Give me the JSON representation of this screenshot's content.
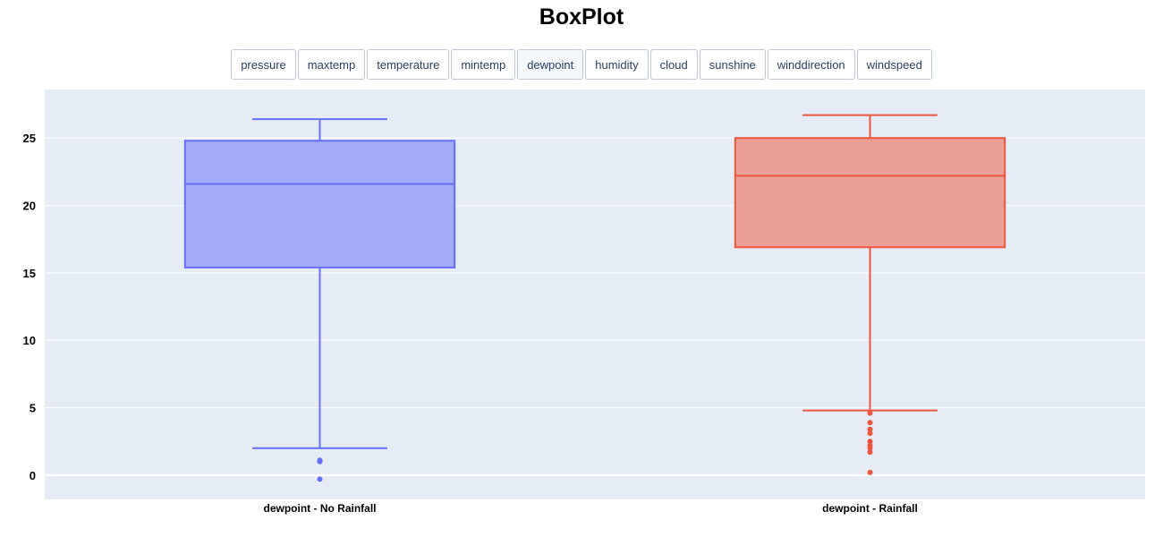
{
  "title": "BoxPlot",
  "tabs": [
    "pressure",
    "maxtemp",
    "temperature",
    "mintemp",
    "dewpoint",
    "humidity",
    "cloud",
    "sunshine",
    "winddirection",
    "windspeed"
  ],
  "active_tab": "dewpoint",
  "colors": {
    "plot_bg": "#e5ecf6",
    "grid": "#ffffff",
    "no_rainfall_line": "#636efa",
    "no_rainfall_fill": "#a2abf6",
    "rainfall_line": "#ef553b",
    "rainfall_fill": "#eaa094"
  },
  "chart_data": {
    "type": "box",
    "title": "BoxPlot",
    "ylim": [
      -1.8,
      28.6
    ],
    "yticks": [
      0,
      5,
      10,
      15,
      20,
      25
    ],
    "grid": true,
    "categories": [
      "dewpoint - No Rainfall",
      "dewpoint - Rainfall"
    ],
    "series": [
      {
        "label": "dewpoint - No Rainfall",
        "color": "#636efa",
        "whisker_low": 2.0,
        "q1": 15.4,
        "median": 21.6,
        "q3": 24.8,
        "whisker_high": 26.4,
        "outliers": [
          1.1,
          1.0,
          -0.3
        ]
      },
      {
        "label": "dewpoint - Rainfall",
        "color": "#ef553b",
        "whisker_low": 4.8,
        "q1": 16.9,
        "median": 22.2,
        "q3": 25.0,
        "whisker_high": 26.7,
        "outliers": [
          4.6,
          3.9,
          3.4,
          3.1,
          2.5,
          2.2,
          2.0,
          1.7,
          0.2
        ]
      }
    ]
  }
}
